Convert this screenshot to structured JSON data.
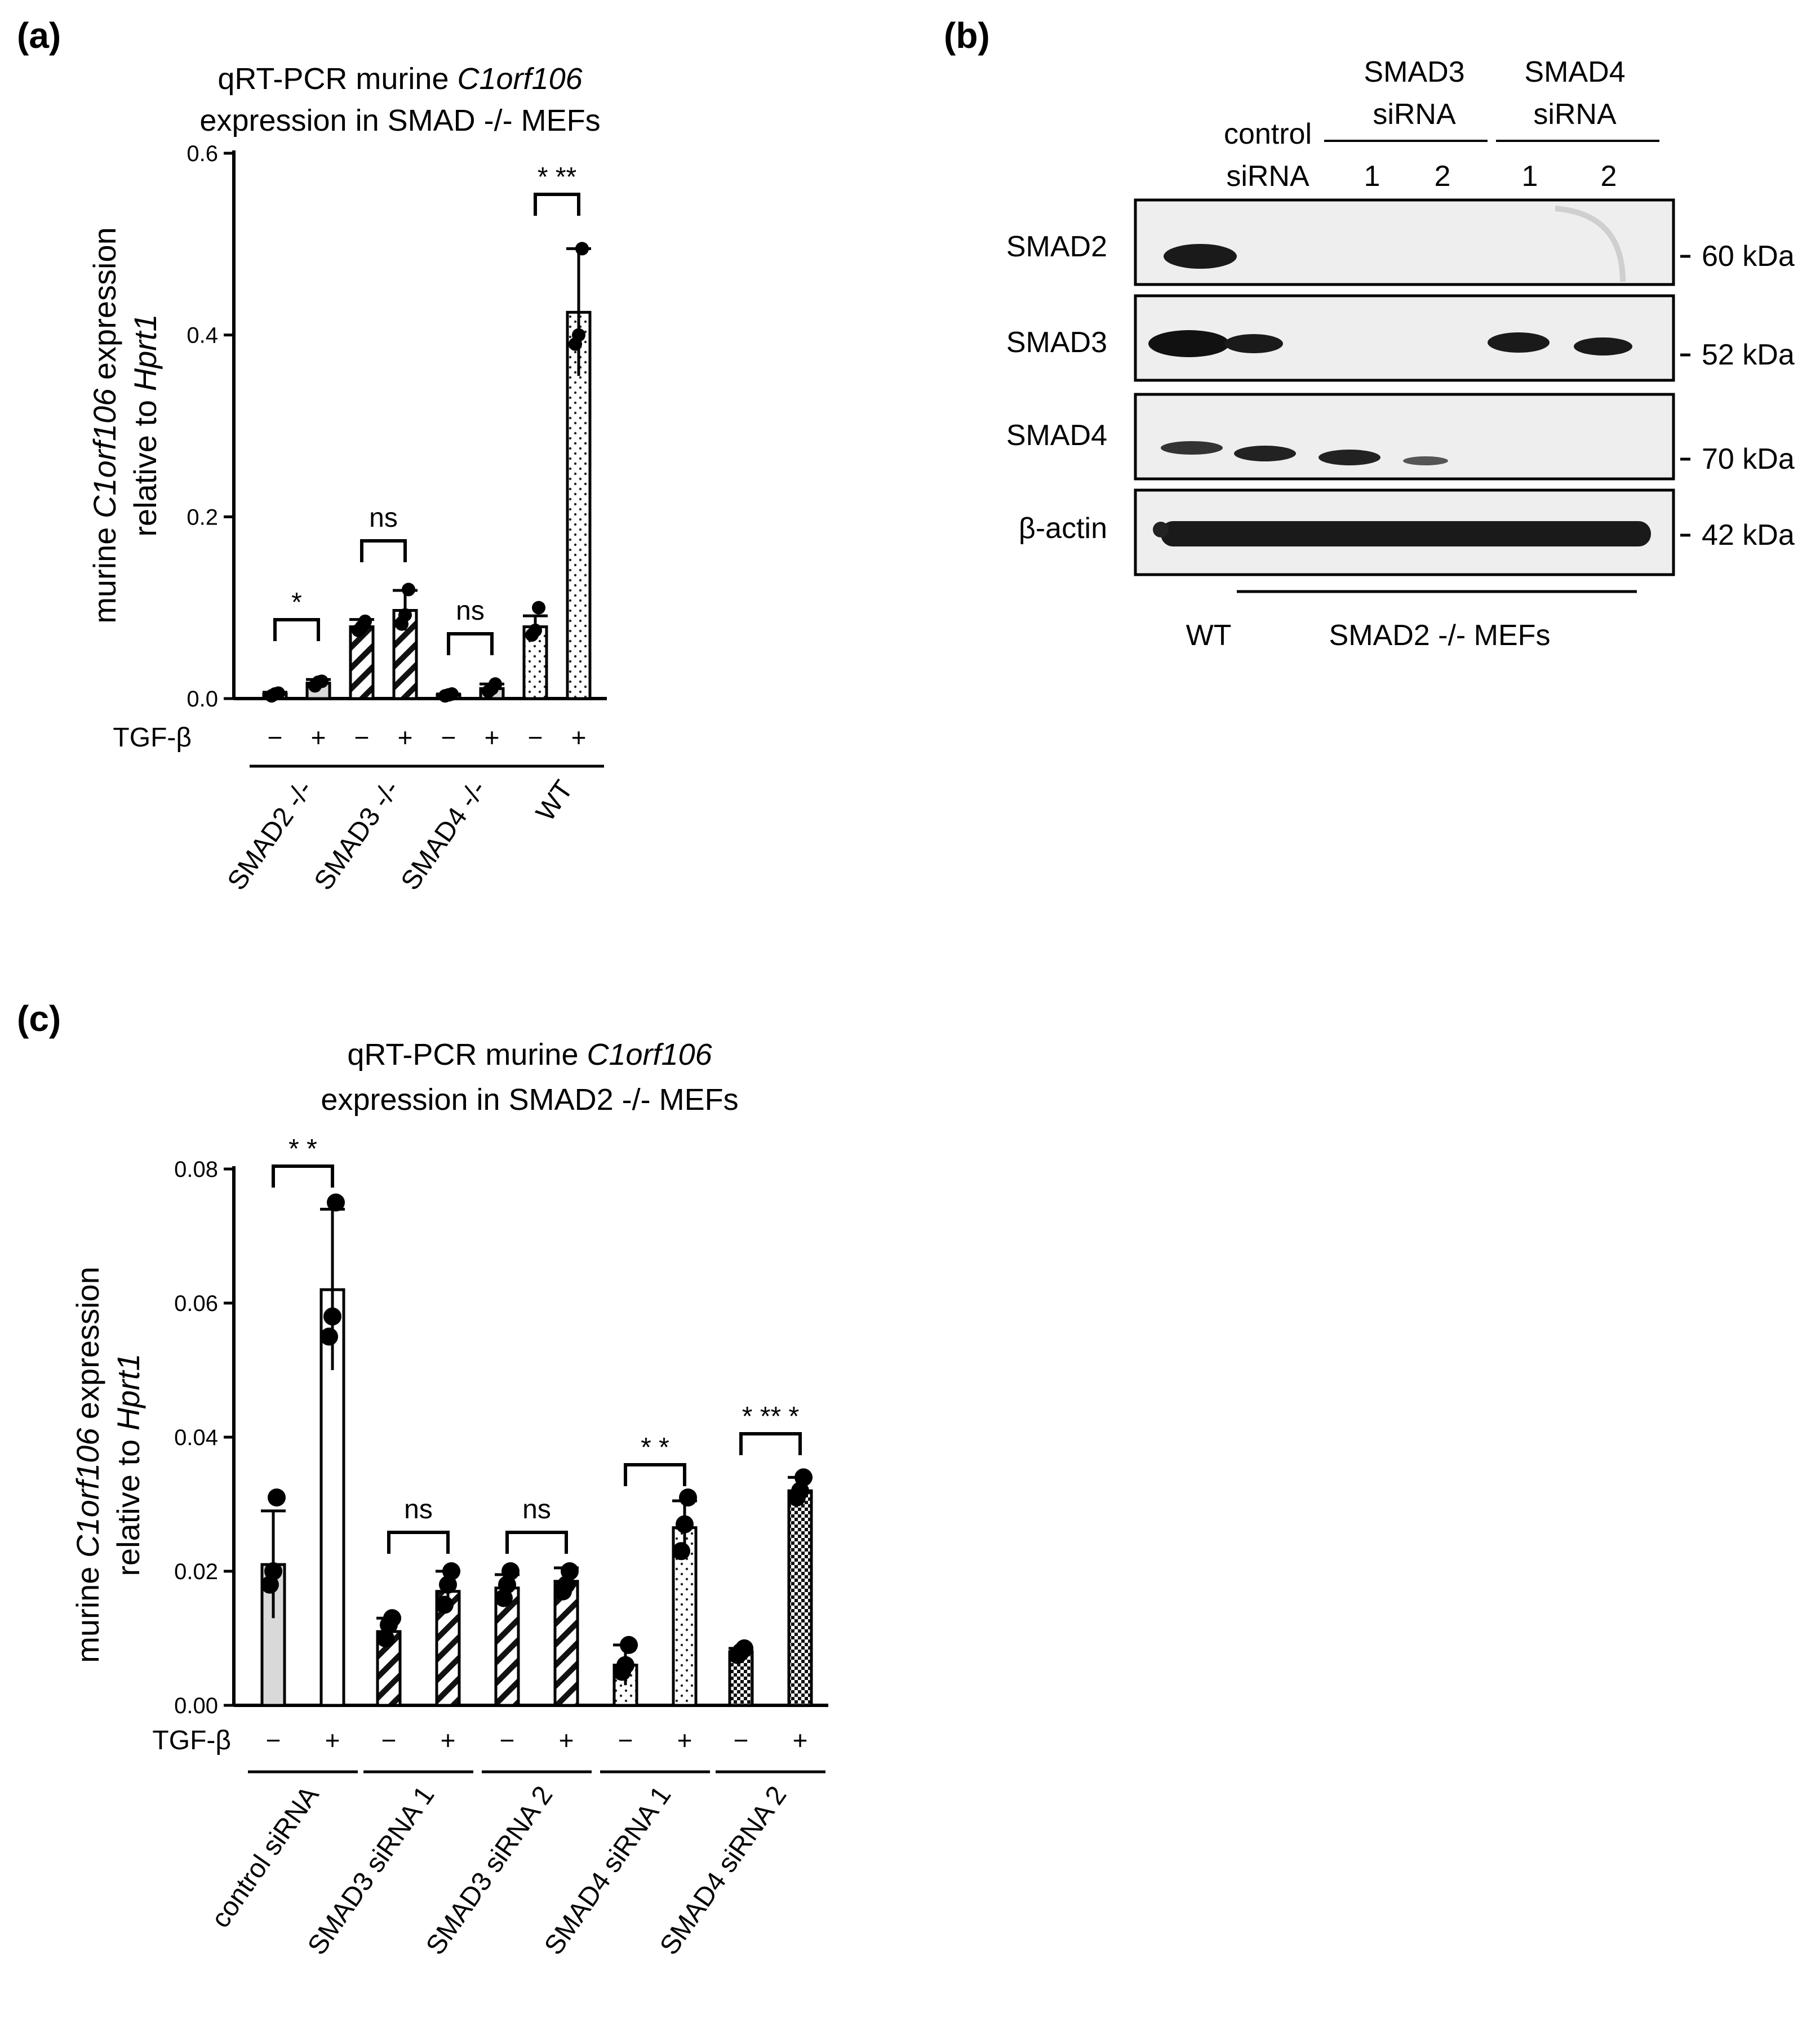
{
  "colors": {
    "bar_fill_light": "#d9d9d9",
    "bar_fill_white": "#ffffff",
    "ink": "#000000",
    "blot_bg": "#eeeeee",
    "band": "#1a1a1a"
  },
  "panel_a": {
    "label": "(a)",
    "title_line1_plain": "qRT-PCR murine ",
    "title_line1_italic": "C1orf106",
    "title_line2": "expression in SMAD -/- MEFs",
    "ylabel_line1_italic": "murine ",
    "ylabel_gene": "C1orf106",
    "ylabel_line1_rest": " expression",
    "ylabel_line2_plain": "relative to ",
    "ylabel_line2_italic": "Hprt1",
    "tgf_label": "TGF-β",
    "minus": "−",
    "plus": "+"
  },
  "panel_b": {
    "label": "(b)",
    "col_header_control_1": "control",
    "col_header_control_2": "siRNA",
    "col_header_smad3_1": "SMAD3",
    "col_header_smad3_2": "siRNA",
    "col_header_smad4_1": "SMAD4",
    "col_header_smad4_2": "siRNA",
    "lane_nums": [
      "1",
      "2",
      "1",
      "2"
    ],
    "rows": [
      {
        "name": "SMAD2",
        "size": "60 kDa"
      },
      {
        "name": "SMAD3",
        "size": "52 kDa"
      },
      {
        "name": "SMAD4",
        "size": "70 kDa"
      },
      {
        "name": "β-actin",
        "size": "42 kDa"
      }
    ],
    "bottom_wt": "WT",
    "bottom_mefs": "SMAD2 -/- MEFs"
  },
  "panel_c": {
    "label": "(c)",
    "title_line1_plain": "qRT-PCR murine ",
    "title_line1_italic": "C1orf106",
    "title_line2": "expression in SMAD2 -/- MEFs",
    "ylabel_line1_italic": "murine ",
    "ylabel_gene": "C1orf106",
    "ylabel_line1_rest": " expression",
    "ylabel_line2_plain": "relative to ",
    "ylabel_line2_italic": "Hprt1",
    "tgf_label": "TGF-β",
    "minus": "−",
    "plus": "+"
  },
  "chart_data": [
    {
      "id": "a",
      "type": "bar",
      "title": "qRT-PCR murine C1orf106 expression in SMAD -/- MEFs",
      "ylabel": "murine C1orf106 expression relative to Hprt1",
      "ylim": [
        0,
        0.6
      ],
      "yticks": [
        "0.0",
        "0.2",
        "0.4",
        "0.6"
      ],
      "groups": [
        "SMAD2 -/-",
        "SMAD3 -/-",
        "SMAD4 -/-",
        "WT"
      ],
      "treatment": [
        "−",
        "+"
      ],
      "values": [
        0.005,
        0.017,
        0.079,
        0.097,
        0.004,
        0.011,
        0.079,
        0.425
      ],
      "errors": [
        0.002,
        0.004,
        0.008,
        0.022,
        0.001,
        0.005,
        0.012,
        0.07
      ],
      "points": [
        [
          0.003,
          0.005,
          0.006
        ],
        [
          0.014,
          0.018,
          0.019
        ],
        [
          0.075,
          0.079,
          0.085
        ],
        [
          0.082,
          0.092,
          0.12
        ],
        [
          0.003,
          0.004,
          0.005
        ],
        [
          0.008,
          0.011,
          0.016
        ],
        [
          0.07,
          0.075,
          0.1
        ],
        [
          0.39,
          0.4,
          0.495
        ]
      ],
      "patterns": [
        "light",
        "light",
        "hatch",
        "hatch",
        "light",
        "light",
        "dots",
        "dots"
      ],
      "significance": [
        "*",
        "ns",
        "ns",
        "* **"
      ]
    },
    {
      "id": "c",
      "type": "bar",
      "title": "qRT-PCR murine C1orf106 expression in SMAD2 -/- MEFs",
      "ylabel": "murine C1orf106 expression relative to Hprt1",
      "ylim": [
        0,
        0.08
      ],
      "yticks": [
        "0.00",
        "0.02",
        "0.04",
        "0.06",
        "0.08"
      ],
      "groups": [
        "control siRNA",
        "SMAD3 siRNA 1",
        "SMAD3 siRNA 2",
        "SMAD4 siRNA 1",
        "SMAD4 siRNA 2"
      ],
      "treatment": [
        "−",
        "+"
      ],
      "values": [
        0.021,
        0.062,
        0.011,
        0.017,
        0.0175,
        0.0185,
        0.006,
        0.0265,
        0.008,
        0.032
      ],
      "errors": [
        0.008,
        0.012,
        0.002,
        0.003,
        0.002,
        0.002,
        0.003,
        0.004,
        0.0005,
        0.002
      ],
      "points": [
        [
          0.018,
          0.02,
          0.031
        ],
        [
          0.055,
          0.058,
          0.075
        ],
        [
          0.01,
          0.012,
          0.013
        ],
        [
          0.015,
          0.018,
          0.02
        ],
        [
          0.016,
          0.018,
          0.02
        ],
        [
          0.017,
          0.018,
          0.02
        ],
        [
          0.005,
          0.006,
          0.009
        ],
        [
          0.023,
          0.027,
          0.031
        ],
        [
          0.0075,
          0.008,
          0.0085
        ],
        [
          0.031,
          0.032,
          0.034
        ]
      ],
      "patterns": [
        "light",
        "white",
        "hatch",
        "hatch",
        "hatch",
        "hatch",
        "dots",
        "dots",
        "check",
        "check"
      ],
      "significance": [
        "* *",
        "ns",
        "ns",
        "* *",
        "* ** *"
      ]
    }
  ]
}
